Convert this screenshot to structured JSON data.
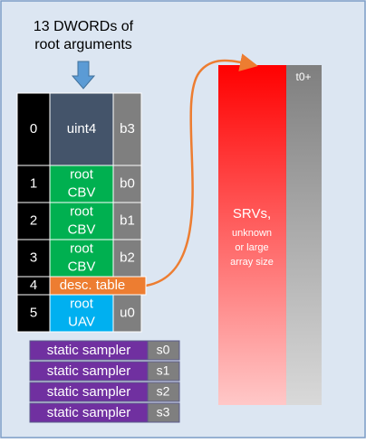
{
  "title": [
    "13 DWORDs of",
    "root arguments"
  ],
  "rows": [
    {
      "index": "0",
      "label": [
        "uint4"
      ],
      "register": "b3",
      "color": "#44546a"
    },
    {
      "index": "1",
      "label": [
        "root",
        "CBV"
      ],
      "register": "b0",
      "color": "#00b050"
    },
    {
      "index": "2",
      "label": [
        "root",
        "CBV"
      ],
      "register": "b1",
      "color": "#00b050"
    },
    {
      "index": "3",
      "label": [
        "root",
        "CBV"
      ],
      "register": "b2",
      "color": "#00b050"
    },
    {
      "index": "4",
      "label": [
        "desc. table"
      ],
      "color": "#ed7d31"
    },
    {
      "index": "5",
      "label": [
        "root",
        "UAV"
      ],
      "register": "u0",
      "color": "#00b0f0"
    }
  ],
  "samplers": [
    {
      "label": "static sampler",
      "register": "s0"
    },
    {
      "label": "static sampler",
      "register": "s1"
    },
    {
      "label": "static sampler",
      "register": "s2"
    },
    {
      "label": "static sampler",
      "register": "s3"
    }
  ],
  "srv": {
    "register": "t0+",
    "label": [
      "SRVs,",
      "unknown",
      "or large",
      "array size"
    ]
  }
}
